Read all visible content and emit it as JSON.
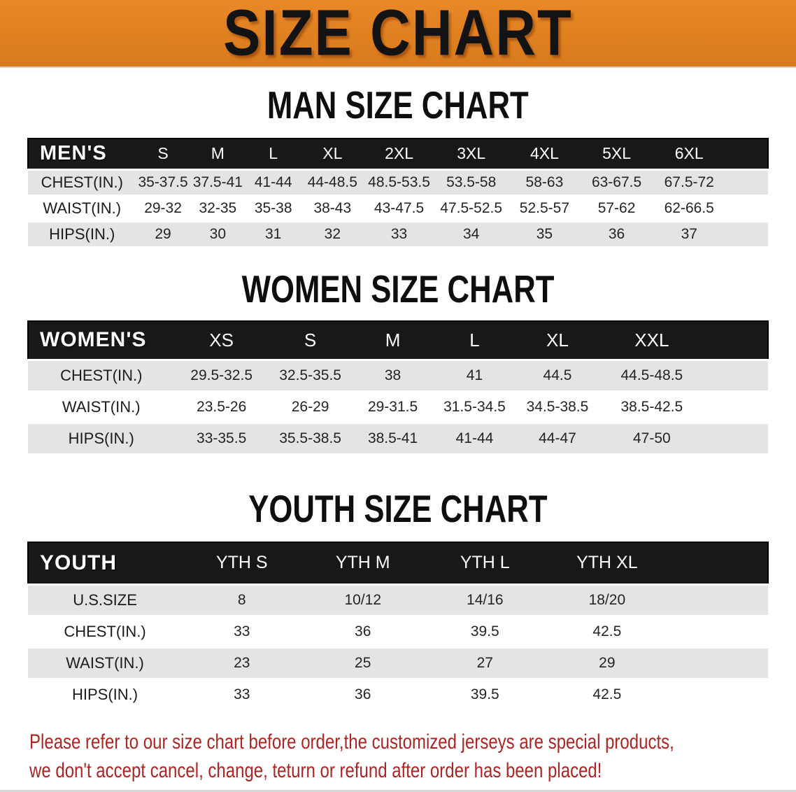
{
  "banner": {
    "title": "SIZE CHART",
    "bg_color": "#E8831E",
    "text_color": "#131313"
  },
  "sections": [
    {
      "heading": "MAN SIZE CHART",
      "table": {
        "group_label": "MEN'S",
        "sizes": [
          "S",
          "M",
          "L",
          "XL",
          "2XL",
          "3XL",
          "4XL",
          "5XL",
          "6XL"
        ],
        "rows": [
          {
            "label": "CHEST(IN.)",
            "values": [
              "35-37.5",
              "37.5-41",
              "41-44",
              "44-48.5",
              "48.5-53.5",
              "53.5-58",
              "58-63",
              "63-67.5",
              "67.5-72"
            ]
          },
          {
            "label": "WAIST(IN.)",
            "values": [
              "29-32",
              "32-35",
              "35-38",
              "38-43",
              "43-47.5",
              "47.5-52.5",
              "52.5-57",
              "57-62",
              "62-66.5"
            ]
          },
          {
            "label": "HIPS(IN.)",
            "values": [
              "29",
              "30",
              "31",
              "32",
              "33",
              "34",
              "35",
              "36",
              "37"
            ]
          }
        ]
      }
    },
    {
      "heading": "WOMEN SIZE CHART",
      "table": {
        "group_label": "WOMEN'S",
        "sizes": [
          "XS",
          "S",
          "M",
          "L",
          "XL",
          "XXL"
        ],
        "rows": [
          {
            "label": "CHEST(IN.)",
            "values": [
              "29.5-32.5",
              "32.5-35.5",
              "38",
              "41",
              "44.5",
              "44.5-48.5"
            ]
          },
          {
            "label": "WAIST(IN.)",
            "values": [
              "23.5-26",
              "26-29",
              "29-31.5",
              "31.5-34.5",
              "34.5-38.5",
              "38.5-42.5"
            ]
          },
          {
            "label": "HIPS(IN.)",
            "values": [
              "33-35.5",
              "35.5-38.5",
              "38.5-41",
              "41-44",
              "44-47",
              "47-50"
            ]
          }
        ]
      }
    },
    {
      "heading": "YOUTH SIZE CHART",
      "table": {
        "group_label": "YOUTH",
        "sizes": [
          "YTH S",
          "YTH M",
          "YTH L",
          "YTH XL"
        ],
        "rows": [
          {
            "label": "U.S.SIZE",
            "values": [
              "8",
              "10/12",
              "14/16",
              "18/20"
            ]
          },
          {
            "label": "CHEST(IN.)",
            "values": [
              "33",
              "36",
              "39.5",
              "42.5"
            ]
          },
          {
            "label": "WAIST(IN.)",
            "values": [
              "23",
              "25",
              "27",
              "29"
            ]
          },
          {
            "label": "HIPS(IN.)",
            "values": [
              "33",
              "36",
              "39.5",
              "42.5"
            ]
          }
        ]
      }
    }
  ],
  "disclaimer": {
    "line1": "Please refer to our size chart before order,the customized jerseys are special products,",
    "line2": "we don't accept cancel, change, teturn or refund after order has been placed!",
    "text_color": "#AE2420"
  },
  "colors": {
    "header_row_bg": "#181818",
    "header_row_text": "#FFFFFF",
    "stripe_gray": "#E4E4E4",
    "stripe_white": "#FFFFFF"
  }
}
